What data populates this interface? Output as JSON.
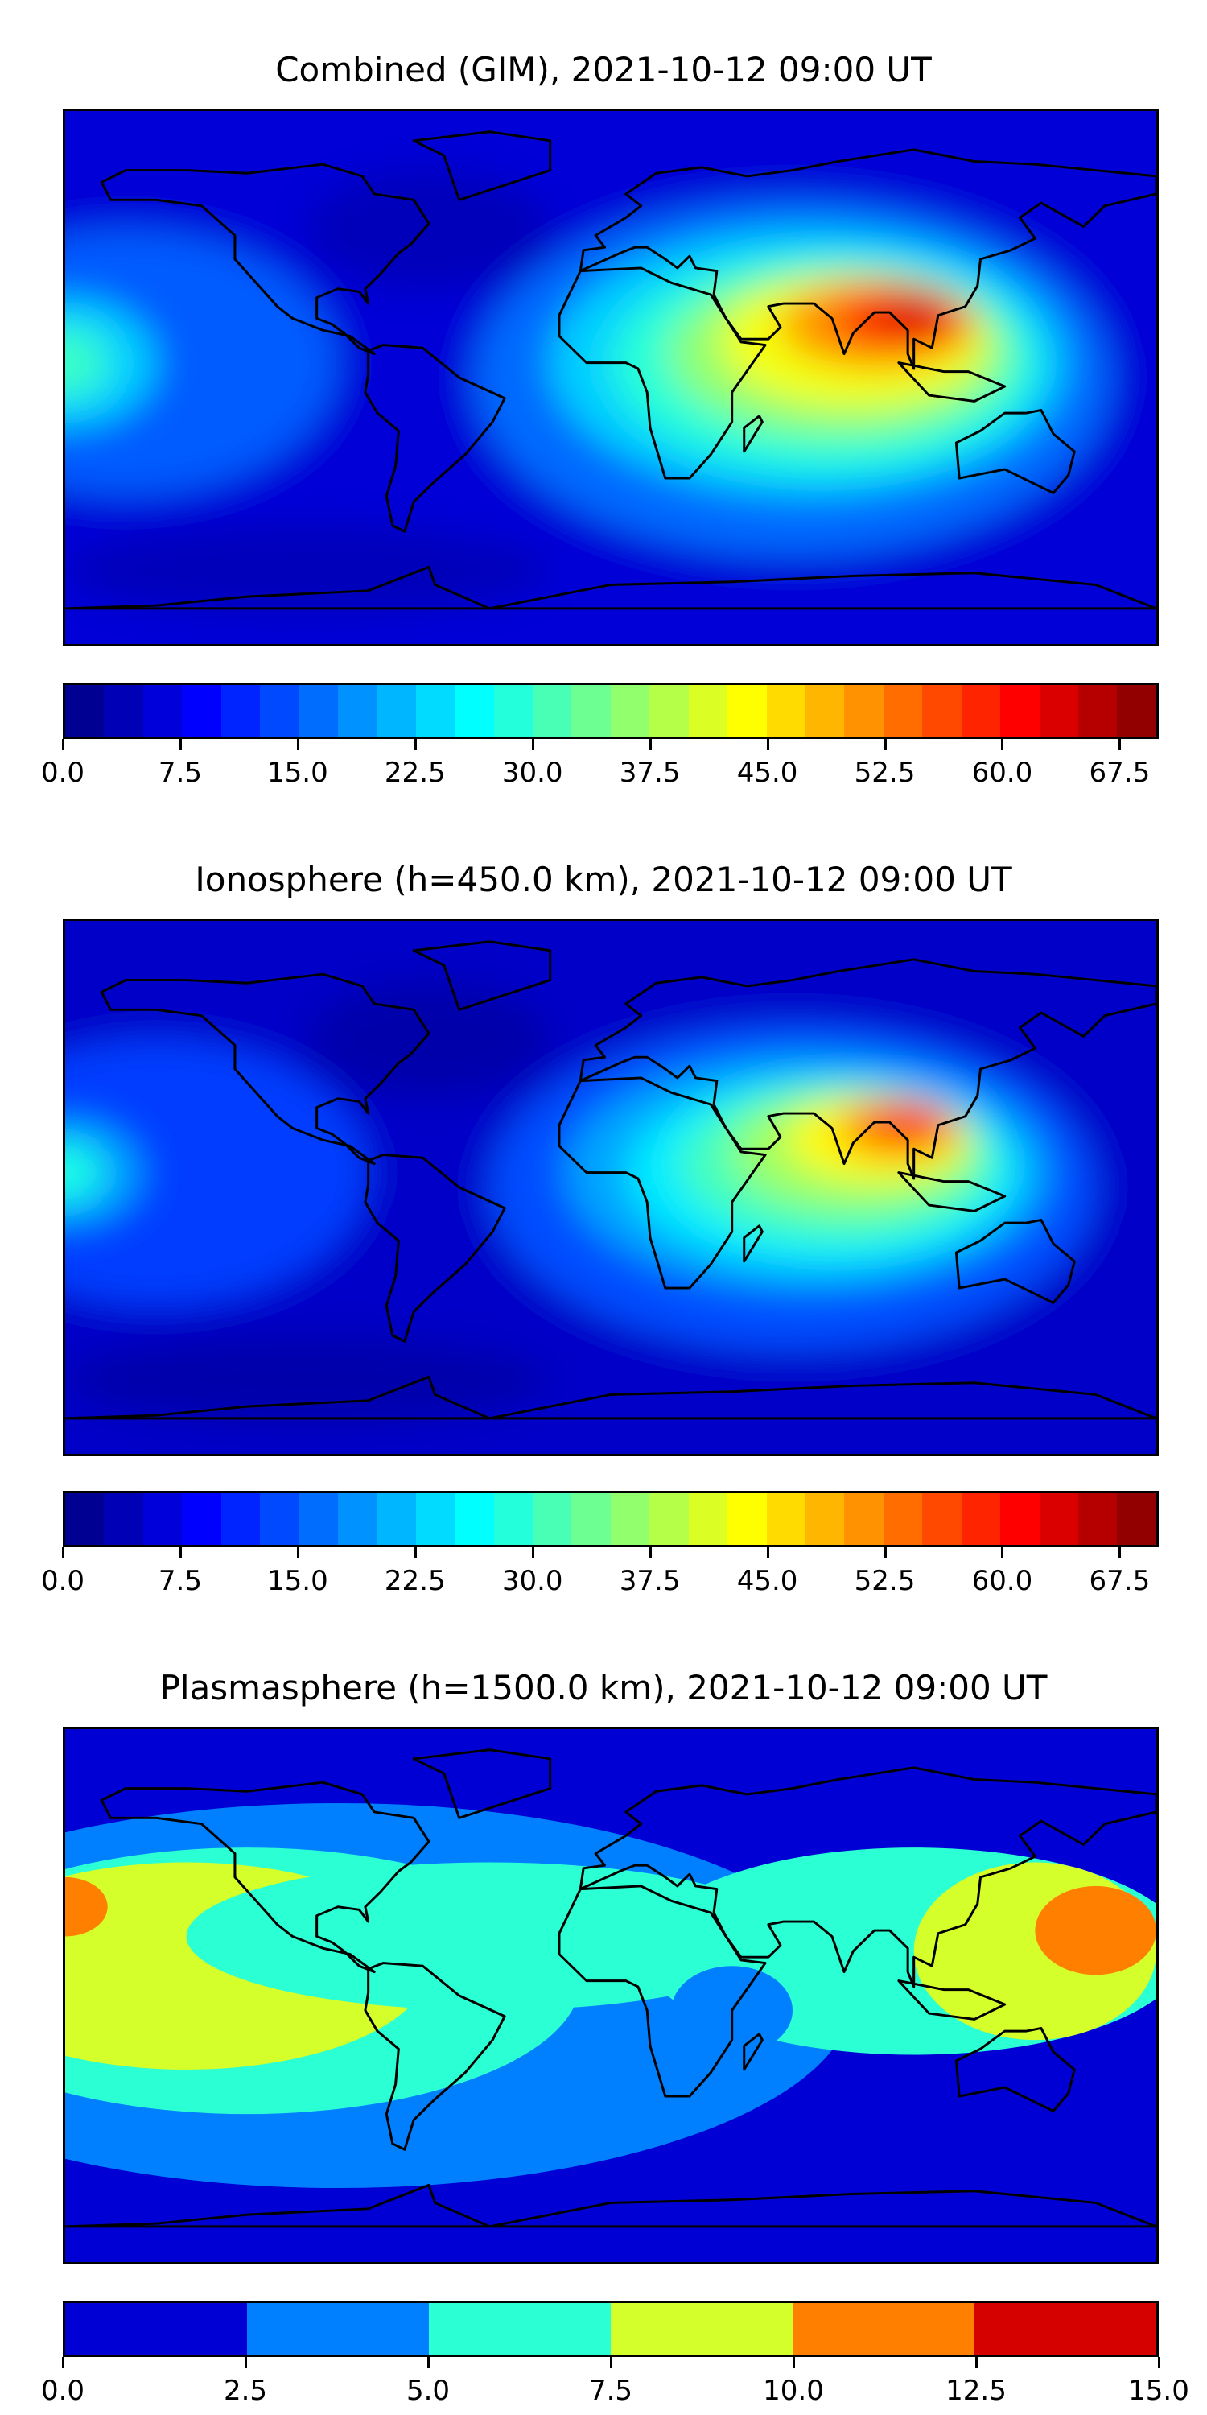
{
  "panels": [
    {
      "title": "Combined (GIM), 2021-10-12 09:00 UT",
      "colorbar": {
        "min": 0,
        "max": 70,
        "step": 2.5,
        "tick_labels": [
          "0.0",
          "7.5",
          "15.0",
          "22.5",
          "30.0",
          "37.5",
          "45.0",
          "52.5",
          "60.0",
          "67.5"
        ]
      }
    },
    {
      "title": "Ionosphere  (h=450.0 km), 2021-10-12 09:00 UT",
      "colorbar": {
        "min": 0,
        "max": 70,
        "step": 2.5,
        "tick_labels": [
          "0.0",
          "7.5",
          "15.0",
          "22.5",
          "30.0",
          "37.5",
          "45.0",
          "52.5",
          "60.0",
          "67.5"
        ]
      }
    },
    {
      "title": "Plasmasphere (h=1500.0 km), 2021-10-12 09:00 UT",
      "colorbar": {
        "min": 0,
        "max": 15,
        "step": 2.5,
        "tick_labels": [
          "0.0",
          "2.5",
          "5.0",
          "7.5",
          "10.0",
          "12.5",
          "15.0"
        ]
      }
    }
  ],
  "chart_data": [
    {
      "type": "heatmap",
      "title": "Combined (GIM), 2021-10-12 09:00 UT",
      "colormap": "jet",
      "levels": [
        0,
        70,
        2.5
      ],
      "peak_value_approx": 62,
      "peak_location": "South/Southeast Asia",
      "extent": {
        "lon": [
          -180,
          180
        ],
        "lat": [
          -90,
          90
        ]
      }
    },
    {
      "type": "heatmap",
      "title": "Ionosphere  (h=450.0 km), 2021-10-12 09:00 UT",
      "colormap": "jet",
      "levels": [
        0,
        70,
        2.5
      ],
      "peak_value_approx": 50,
      "peak_location": "South/Southeast Asia",
      "extent": {
        "lon": [
          -180,
          180
        ],
        "lat": [
          -90,
          90
        ]
      }
    },
    {
      "type": "heatmap",
      "title": "Plasmasphere (h=1500.0 km), 2021-10-12 09:00 UT",
      "colormap": "jet",
      "levels": [
        0,
        15,
        2.5
      ],
      "peak_value_approx": 11,
      "peak_location": "Pacific (central and western)",
      "extent": {
        "lon": [
          -180,
          180
        ],
        "lat": [
          -90,
          90
        ]
      }
    }
  ]
}
